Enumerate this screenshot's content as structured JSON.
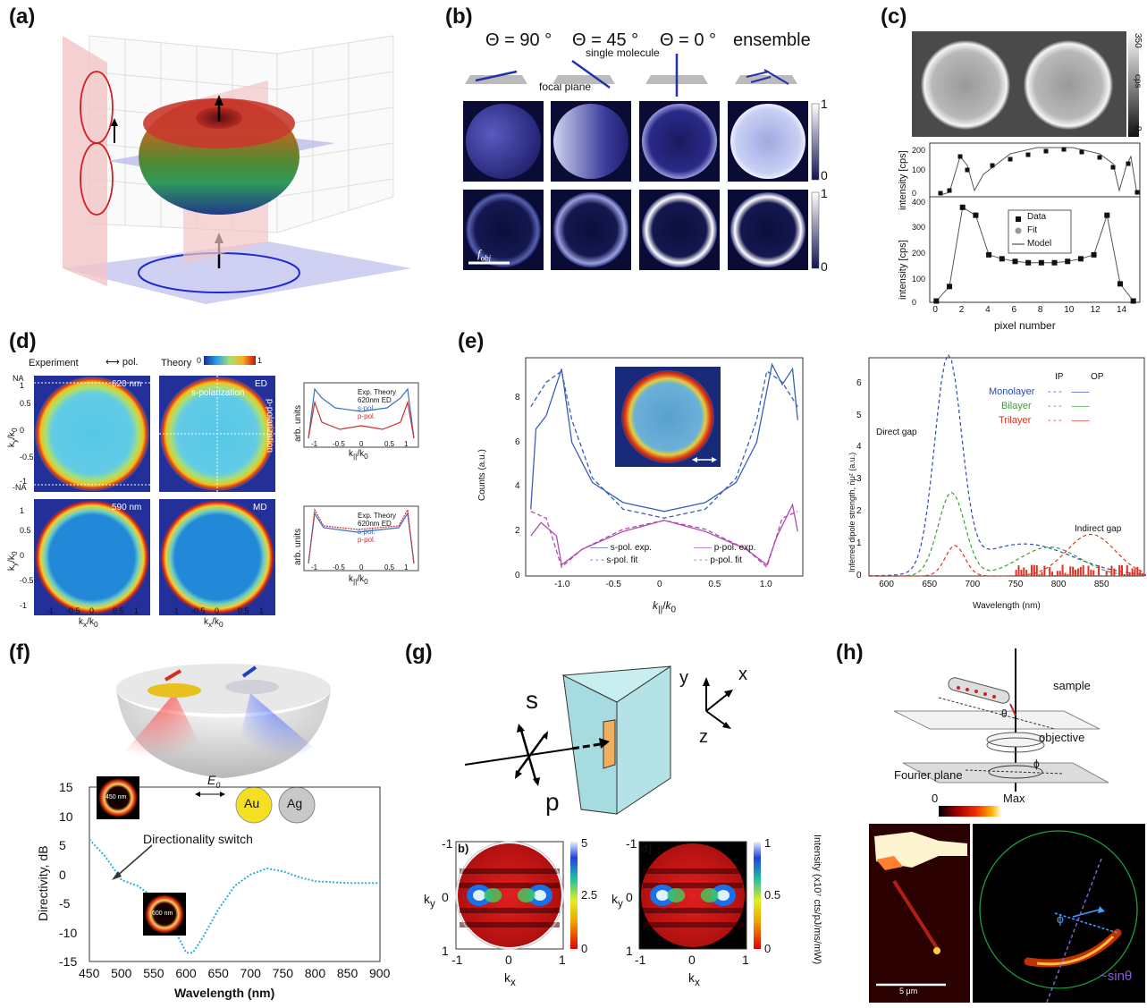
{
  "labels": {
    "a": "(a)",
    "b": "(b)",
    "c": "(c)",
    "d": "(d)",
    "e": "(e)",
    "f": "(f)",
    "g": "(g)",
    "h": "(h)"
  },
  "colors": {
    "blue_dark": "#101450",
    "pink": "#f2c4c4",
    "lavender": "#c8c8f0",
    "curve_blue": "#3a5fb8",
    "curve_red": "#d23030",
    "curve_magenta": "#b04cb0",
    "cyan": "#2ab0e0"
  },
  "b": {
    "headers": [
      "Θ = 90 °",
      "Θ = 45 °",
      "Θ = 0 °",
      "ensemble"
    ],
    "single_molecule": "single molecule",
    "focal_plane": "focal plane",
    "cb_top": "1",
    "cb_bottom": "0",
    "fobj": "f",
    "fobj_sub": "obj"
  },
  "c": {
    "cbar_top": "350",
    "cbar_unit": "cps",
    "cbar_bottom": "0",
    "ylabel": "intensity [cps]",
    "xlabel": "pixel number",
    "legend": [
      "Data",
      "Fit",
      "Model"
    ],
    "top_yticks": [
      "200",
      "100",
      "0"
    ],
    "bot_yticks": [
      "400",
      "300",
      "200",
      "100",
      "0"
    ],
    "xticks": [
      "0",
      "2",
      "4",
      "6",
      "8",
      "10",
      "12",
      "14"
    ]
  },
  "d": {
    "experiment": "Experiment",
    "pol": "pol.",
    "theory": "Theory",
    "cb_min": "0",
    "cb_max": "1",
    "nm620": "620 nm",
    "nm590": "590 nm",
    "ED": "ED",
    "MD": "MD",
    "s_polarization": "s-polarization",
    "p_polarization": "p-polarization",
    "ylabel": "k",
    "ysub": "y",
    "ysub2": "0",
    "xlabel": "k",
    "xsub": "x",
    "arb": "arb. units",
    "k_par": "k",
    "yticks": [
      "NA",
      "1",
      "0.5",
      "0",
      "-0.5",
      "-1",
      "-NA"
    ],
    "yticks2": [
      "1",
      "0.5",
      "0",
      "-0.5",
      "-1"
    ],
    "xticks": [
      "-1",
      "-0.5",
      "0",
      "0.5",
      "1"
    ],
    "legend1": {
      "exp": "Exp.",
      "nm": "620nm",
      "theory": "Theory",
      "ed": "ED",
      "s": "s-pol.",
      "p": "p-pol."
    },
    "legend2": {
      "exp": "Exp.",
      "nm": "620nm",
      "theory": "Theory",
      "ed": "ED",
      "s": "s-pol.",
      "p": "p-pol."
    }
  },
  "e": {
    "ylabel": "Counts (a.u.)",
    "yticks": [
      "8",
      "6",
      "4",
      "2",
      "0"
    ],
    "xticks": [
      "-1.0",
      "-0.5",
      "0",
      "0.5",
      "1.0"
    ],
    "xlabel": "k",
    "legend": [
      "s-pol. exp.",
      "s-pol. fit",
      "p-pol. exp.",
      "p-pol. fit"
    ],
    "right_ylabel": "Inferred dipole strength, n̄μ² (a.u.)",
    "right_yticks": [
      "6",
      "5",
      "4",
      "3",
      "2",
      "1",
      "0"
    ],
    "right_xticks": [
      "600",
      "650",
      "700",
      "750",
      "800",
      "850"
    ],
    "right_xlabel": "Wavelength (nm)",
    "IP": "IP",
    "OP": "OP",
    "mono": "Monolayer",
    "bi": "Bilayer",
    "tri": "Trilayer",
    "direct": "Direct gap",
    "indirect": "Indirect gap"
  },
  "f": {
    "ylabel": "Directivity, dB",
    "yticks": [
      "15",
      "10",
      "5",
      "0",
      "-5",
      "-10",
      "-15"
    ],
    "xticks": [
      "450",
      "500",
      "550",
      "600",
      "650",
      "700",
      "750",
      "800",
      "850",
      "900"
    ],
    "xlabel": "Wavelength (nm)",
    "E0": "E",
    "E0sub": "0",
    "Au": "Au",
    "Ag": "Ag",
    "switch": "Directionality switch",
    "inset1": "450 nm",
    "inset2": "600 nm"
  },
  "g": {
    "s": "s",
    "p": "p",
    "x": "x",
    "y": "y",
    "z": "z",
    "b_label": "b)",
    "d_label": "d)",
    "cb1": [
      "5",
      "2.5",
      "0"
    ],
    "cb2": [
      "1",
      "0.5",
      "0"
    ],
    "cb_label": "Intensity (x10⁷ cts/pJ/ms/mW)",
    "kx": "k",
    "ky": "k",
    "yticks": [
      "-1",
      "0",
      "1"
    ],
    "xticks": [
      "-1",
      "0",
      "1"
    ]
  },
  "h": {
    "sample": "sample",
    "objective": "objective",
    "fourier": "Fourier plane",
    "theta": "θ",
    "phi": "ϕ",
    "cb_min": "0",
    "cb_max": "Max",
    "scale": "5 μm",
    "sin": "~sinθ"
  },
  "chart_data": [
    {
      "type": "line",
      "title": "",
      "xlabel": "pixel number",
      "ylabel": "intensity [cps]",
      "x": [
        0,
        1,
        2,
        3,
        4,
        5,
        6,
        7,
        8,
        9,
        10,
        11,
        12,
        13,
        14,
        15
      ],
      "series": [
        {
          "name": "Data",
          "values": [
            5,
            60,
            360,
            330,
            180,
            165,
            155,
            150,
            150,
            150,
            155,
            165,
            180,
            330,
            70,
            5
          ]
        }
      ],
      "ylim": [
        0,
        400
      ],
      "xlim": [
        -0.5,
        15.5
      ]
    },
    {
      "type": "line",
      "title": "",
      "xlabel": "k_||/k_0",
      "ylabel": "Counts (a.u.)",
      "xlim": [
        -1.35,
        1.35
      ],
      "ylim": [
        0,
        9.8
      ],
      "series": [
        {
          "name": "s-pol. exp."
        },
        {
          "name": "s-pol. fit"
        },
        {
          "name": "p-pol. exp."
        },
        {
          "name": "p-pol. fit"
        }
      ]
    },
    {
      "type": "line",
      "title": "",
      "xlabel": "Wavelength (nm)",
      "ylabel": "Inferred dipole strength",
      "xlim": [
        580,
        900
      ],
      "ylim": [
        0,
        6.8
      ],
      "series": [
        {
          "name": "Monolayer",
          "peak": [
            672,
            6.6
          ]
        },
        {
          "name": "Bilayer",
          "peak": [
            676,
            2.6
          ]
        },
        {
          "name": "Trilayer",
          "peak": [
            680,
            0.95
          ]
        }
      ]
    },
    {
      "type": "line",
      "title": "",
      "xlabel": "Wavelength (nm)",
      "ylabel": "Directivity, dB",
      "xlim": [
        450,
        900
      ],
      "ylim": [
        -15,
        15
      ],
      "x": [
        450,
        475,
        500,
        525,
        550,
        575,
        600,
        610,
        625,
        650,
        675,
        700,
        725,
        750,
        775,
        800,
        850,
        900
      ],
      "series": [
        {
          "name": "",
          "values": [
            6,
            3,
            -1,
            -2,
            -4,
            -8,
            -13.5,
            -13.5,
            -11,
            -6,
            -2,
            0,
            1,
            0.5,
            -0.5,
            -1.2,
            -1.5,
            -1.5
          ]
        }
      ]
    }
  ]
}
